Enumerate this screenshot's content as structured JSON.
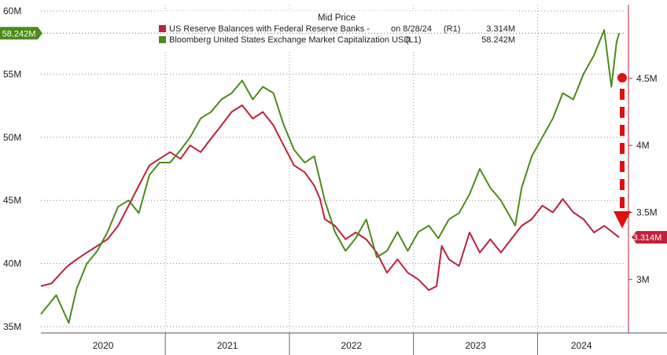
{
  "chart_data": {
    "type": "line",
    "legend": {
      "title": "Mid Price",
      "position": "top-center",
      "entries": [
        {
          "label": "US Reserve Balances with Federal Reserve Banks -",
          "date_note": "on 8/28/24",
          "axis_tag": "(R1)",
          "last_value": "3.314M",
          "color": "#c0203a"
        },
        {
          "label": "Bloomberg United States Exchange Market Capitalization USD",
          "date_note": "",
          "axis_tag": "(L1)",
          "last_value": "58.242M",
          "color": "#4d8a1b"
        }
      ]
    },
    "x_axis": {
      "labels": [
        "2020",
        "2021",
        "2022",
        "2023",
        "2024"
      ],
      "range": [
        "2020-01-01",
        "2024-09-15"
      ]
    },
    "y_left": {
      "ticks": [
        35,
        40,
        45,
        50,
        55,
        60
      ],
      "tick_labels": [
        "35M",
        "40M",
        "45M",
        "50M",
        "55M",
        "60M"
      ],
      "range": [
        34.5,
        60.5
      ],
      "current_tag": "58.242M",
      "current_value": 58.242
    },
    "y_right": {
      "ticks": [
        3,
        3.5,
        4,
        4.5
      ],
      "tick_labels": [
        "3M",
        "3.5M",
        "4M",
        "4.5M"
      ],
      "range": [
        2.6,
        5.05
      ],
      "current_tag": "3.314M",
      "current_value": 3.314
    },
    "grid": true,
    "series": [
      {
        "name": "US Reserve Balances with Federal Reserve Banks",
        "axis": "right",
        "color": "#c0203a",
        "x": [
          "2020-01-01",
          "2020-02-01",
          "2020-03-01",
          "2020-03-20",
          "2020-04-15",
          "2020-05-15",
          "2020-06-15",
          "2020-07-15",
          "2020-08-15",
          "2020-09-15",
          "2020-10-15",
          "2020-11-15",
          "2020-12-15",
          "2021-01-15",
          "2021-02-15",
          "2021-03-15",
          "2021-04-15",
          "2021-05-15",
          "2021-06-15",
          "2021-07-15",
          "2021-08-15",
          "2021-09-15",
          "2021-10-15",
          "2021-11-15",
          "2021-12-15",
          "2022-01-15",
          "2022-02-15",
          "2022-03-15",
          "2022-04-01",
          "2022-04-15",
          "2022-05-15",
          "2022-06-15",
          "2022-07-15",
          "2022-08-15",
          "2022-09-15",
          "2022-10-15",
          "2022-11-15",
          "2022-12-15",
          "2023-01-15",
          "2023-02-15",
          "2023-03-10",
          "2023-03-25",
          "2023-04-15",
          "2023-05-15",
          "2023-06-15",
          "2023-07-15",
          "2023-08-15",
          "2023-09-15",
          "2023-10-15",
          "2023-11-15",
          "2023-12-15",
          "2024-01-15",
          "2024-02-15",
          "2024-03-15",
          "2024-04-15",
          "2024-05-15",
          "2024-06-15",
          "2024-07-15",
          "2024-08-28"
        ],
        "values": [
          2.95,
          2.97,
          3.05,
          3.1,
          3.15,
          3.2,
          3.25,
          3.3,
          3.4,
          3.55,
          3.7,
          3.85,
          3.9,
          3.95,
          3.9,
          4.0,
          3.95,
          4.05,
          4.15,
          4.25,
          4.3,
          4.2,
          4.25,
          4.15,
          4.0,
          3.85,
          3.8,
          3.7,
          3.6,
          3.45,
          3.4,
          3.3,
          3.35,
          3.3,
          3.2,
          3.05,
          3.15,
          3.05,
          3.0,
          2.92,
          2.95,
          3.25,
          3.15,
          3.1,
          3.35,
          3.2,
          3.3,
          3.2,
          3.3,
          3.4,
          3.45,
          3.55,
          3.5,
          3.6,
          3.5,
          3.45,
          3.35,
          3.4,
          3.314
        ]
      },
      {
        "name": "Bloomberg United States Exchange Market Capitalization USD",
        "axis": "left",
        "color": "#4d8a1b",
        "x": [
          "2020-01-01",
          "2020-02-15",
          "2020-03-23",
          "2020-04-15",
          "2020-05-15",
          "2020-06-15",
          "2020-07-15",
          "2020-08-15",
          "2020-09-15",
          "2020-10-15",
          "2020-11-15",
          "2020-12-15",
          "2021-01-15",
          "2021-02-15",
          "2021-03-15",
          "2021-04-15",
          "2021-05-15",
          "2021-06-15",
          "2021-07-15",
          "2021-08-15",
          "2021-09-15",
          "2021-10-15",
          "2021-11-15",
          "2021-12-15",
          "2022-01-15",
          "2022-02-15",
          "2022-03-15",
          "2022-04-15",
          "2022-05-15",
          "2022-06-15",
          "2022-07-15",
          "2022-08-15",
          "2022-09-15",
          "2022-10-15",
          "2022-11-15",
          "2022-12-15",
          "2023-01-15",
          "2023-02-15",
          "2023-03-15",
          "2023-04-15",
          "2023-05-15",
          "2023-06-15",
          "2023-07-15",
          "2023-08-15",
          "2023-09-15",
          "2023-10-27",
          "2023-11-15",
          "2023-12-15",
          "2024-01-15",
          "2024-02-15",
          "2024-03-15",
          "2024-04-15",
          "2024-05-15",
          "2024-06-15",
          "2024-07-15",
          "2024-08-05",
          "2024-08-20",
          "2024-08-28"
        ],
        "values": [
          36.0,
          37.5,
          35.3,
          38.0,
          40.0,
          41.0,
          42.5,
          44.5,
          45.0,
          44.0,
          47.0,
          48.0,
          48.0,
          49.0,
          50.0,
          51.5,
          52.0,
          53.0,
          53.5,
          54.5,
          53.0,
          54.0,
          53.5,
          51.0,
          49.0,
          48.0,
          48.5,
          45.0,
          42.5,
          41.0,
          42.0,
          43.5,
          40.5,
          41.0,
          42.5,
          41.0,
          42.5,
          43.0,
          42.0,
          43.5,
          44.0,
          45.5,
          47.5,
          46.0,
          45.0,
          43.0,
          46.0,
          48.5,
          50.0,
          51.5,
          53.5,
          53.0,
          55.0,
          56.5,
          58.5,
          54.0,
          57.5,
          58.242
        ]
      }
    ]
  }
}
